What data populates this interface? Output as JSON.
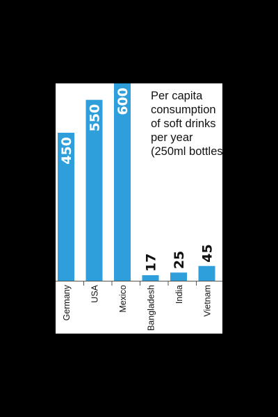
{
  "chart_data": {
    "type": "bar",
    "title_lines": [
      "Per capita",
      "consumption",
      "of soft drinks",
      "per year",
      "(250ml bottles)"
    ],
    "categories": [
      "Germany",
      "USA",
      "Mexico",
      "Bangladesh",
      "India",
      "Vietnam"
    ],
    "values": [
      450,
      550,
      600,
      17,
      25,
      45
    ],
    "ylim": [
      0,
      600
    ],
    "bar_color": "#2f9fdc",
    "grid": false,
    "xlabel": "",
    "ylabel": ""
  }
}
